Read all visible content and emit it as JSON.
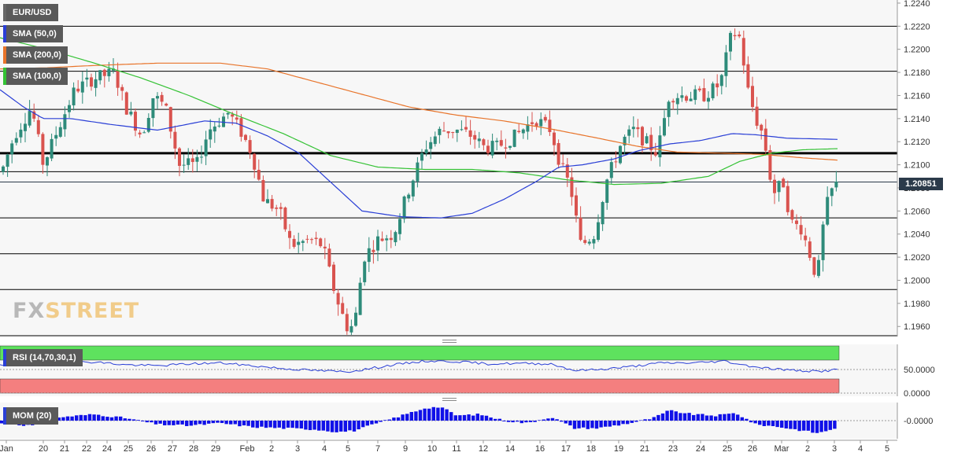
{
  "chart_data": [
    {
      "type": "candlestick",
      "symbol": "EUR/USD",
      "y_ticks": [
        "1.2240",
        "1.2220",
        "1.2200",
        "1.2180",
        "1.2160",
        "1.2140",
        "1.2120",
        "1.2100",
        "1.2080",
        "1.2060",
        "1.2040",
        "1.2020",
        "1.2000",
        "1.1980",
        "1.1960"
      ],
      "ylim": [
        1.1952,
        1.2242
      ],
      "x_tick_labels": [
        "Jan",
        "20",
        "21",
        "22",
        "24",
        "25",
        "26",
        "27",
        "28",
        "29",
        "Feb",
        "2",
        "3",
        "4",
        "5",
        "7",
        "9",
        "10",
        "11",
        "12",
        "14",
        "16",
        "17",
        "18",
        "19",
        "21",
        "23",
        "24",
        "25",
        "26",
        "Mar",
        "2",
        "3",
        "4",
        "5"
      ],
      "current_price": "1.20851",
      "horizontal_levels": [
        1.222,
        1.2181,
        1.2148,
        1.211,
        1.2094,
        1.2054,
        1.2023,
        1.1992,
        1.1952
      ],
      "bold_level": 1.211,
      "indicators": [
        {
          "name": "SMA (50,0)",
          "color": "#2a3fd6"
        },
        {
          "name": "SMA (200,0)",
          "color": "#e8742a"
        },
        {
          "name": "SMA (100,0)",
          "color": "#34c234"
        }
      ],
      "series": {
        "candles_waypoints": [
          [
            0,
            1.209
          ],
          [
            18,
            1.2125
          ],
          [
            40,
            1.215
          ],
          [
            55,
            1.21
          ],
          [
            70,
            1.2125
          ],
          [
            95,
            1.2165
          ],
          [
            120,
            1.2175
          ],
          [
            145,
            1.218
          ],
          [
            160,
            1.215
          ],
          [
            180,
            1.2125
          ],
          [
            195,
            1.216
          ],
          [
            210,
            1.215
          ],
          [
            228,
            1.21
          ],
          [
            250,
            1.21
          ],
          [
            265,
            1.213
          ],
          [
            290,
            1.2145
          ],
          [
            305,
            1.213
          ],
          [
            320,
            1.211
          ],
          [
            335,
            1.207
          ],
          [
            355,
            1.206
          ],
          [
            370,
            1.203
          ],
          [
            395,
            1.2035
          ],
          [
            410,
            1.203
          ],
          [
            425,
            1.199
          ],
          [
            440,
            1.196
          ],
          [
            450,
            1.196
          ],
          [
            462,
            1.202
          ],
          [
            480,
            1.2035
          ],
          [
            500,
            1.204
          ],
          [
            520,
            1.208
          ],
          [
            540,
            1.2115
          ],
          [
            560,
            1.213
          ],
          [
            580,
            1.213
          ],
          [
            600,
            1.2125
          ],
          [
            615,
            1.2115
          ],
          [
            630,
            1.2115
          ],
          [
            655,
            1.2125
          ],
          [
            680,
            1.214
          ],
          [
            700,
            1.213
          ],
          [
            712,
            1.21
          ],
          [
            725,
            1.208
          ],
          [
            738,
            1.203
          ],
          [
            755,
            1.204
          ],
          [
            770,
            1.2085
          ],
          [
            790,
            1.212
          ],
          [
            805,
            1.213
          ],
          [
            820,
            1.212
          ],
          [
            835,
            1.211
          ],
          [
            850,
            1.216
          ],
          [
            870,
            1.216
          ],
          [
            895,
            1.216
          ],
          [
            915,
            1.217
          ],
          [
            930,
            1.2215
          ],
          [
            940,
            1.221
          ],
          [
            950,
            1.2165
          ],
          [
            960,
            1.214
          ],
          [
            970,
            1.2125
          ],
          [
            982,
            1.2075
          ],
          [
            995,
            1.2085
          ],
          [
            1005,
            1.205
          ],
          [
            1018,
            1.2045
          ],
          [
            1030,
            1.202
          ],
          [
            1038,
            1.2
          ],
          [
            1048,
            1.206
          ],
          [
            1058,
            1.208
          ],
          [
            1066,
            1.2085
          ]
        ],
        "sma50": [
          [
            0,
            1.2165
          ],
          [
            30,
            1.215
          ],
          [
            55,
            1.214
          ],
          [
            90,
            1.214
          ],
          [
            140,
            1.2135
          ],
          [
            200,
            1.213
          ],
          [
            260,
            1.2138
          ],
          [
            300,
            1.2136
          ],
          [
            340,
            1.2125
          ],
          [
            380,
            1.211
          ],
          [
            420,
            1.2085
          ],
          [
            460,
            1.206
          ],
          [
            510,
            1.2055
          ],
          [
            560,
            1.2054
          ],
          [
            600,
            1.2058
          ],
          [
            640,
            1.207
          ],
          [
            680,
            1.2085
          ],
          [
            710,
            1.2098
          ],
          [
            740,
            1.21
          ],
          [
            780,
            1.2105
          ],
          [
            810,
            1.2112
          ],
          [
            850,
            1.2118
          ],
          [
            890,
            1.2121
          ],
          [
            930,
            1.2127
          ],
          [
            960,
            1.2126
          ],
          [
            1000,
            1.2123
          ],
          [
            1065,
            1.2122
          ]
        ],
        "sma200": [
          [
            0,
            1.2183
          ],
          [
            60,
            1.2184
          ],
          [
            120,
            1.2186
          ],
          [
            200,
            1.2188
          ],
          [
            280,
            1.2188
          ],
          [
            340,
            1.2183
          ],
          [
            400,
            1.2172
          ],
          [
            460,
            1.2161
          ],
          [
            520,
            1.215
          ],
          [
            580,
            1.2143
          ],
          [
            640,
            1.2138
          ],
          [
            700,
            1.2131
          ],
          [
            760,
            1.2123
          ],
          [
            810,
            1.2116
          ],
          [
            860,
            1.2111
          ],
          [
            920,
            1.211
          ],
          [
            970,
            1.2109
          ],
          [
            1020,
            1.2106
          ],
          [
            1065,
            1.2104
          ]
        ],
        "sma100": [
          [
            0,
            1.221
          ],
          [
            60,
            1.22
          ],
          [
            120,
            1.2188
          ],
          [
            180,
            1.2175
          ],
          [
            240,
            1.216
          ],
          [
            300,
            1.2143
          ],
          [
            360,
            1.2127
          ],
          [
            420,
            1.2108
          ],
          [
            480,
            1.2098
          ],
          [
            540,
            1.2096
          ],
          [
            600,
            1.2096
          ],
          [
            660,
            1.2093
          ],
          [
            720,
            1.2087
          ],
          [
            780,
            1.2083
          ],
          [
            840,
            1.2084
          ],
          [
            900,
            1.209
          ],
          [
            940,
            1.2103
          ],
          [
            980,
            1.211
          ],
          [
            1020,
            1.2113
          ],
          [
            1065,
            1.2114
          ]
        ]
      }
    },
    {
      "type": "line",
      "title": "RSI (14,70,30,1)",
      "y_ticks": [
        "50.0000",
        "0.0000"
      ],
      "overbought_color": "#5ee25e",
      "oversold_color": "#f47f7f",
      "values_waypoints": [
        [
          0,
          58
        ],
        [
          40,
          60
        ],
        [
          80,
          65
        ],
        [
          120,
          66
        ],
        [
          160,
          60
        ],
        [
          200,
          58
        ],
        [
          240,
          62
        ],
        [
          280,
          64
        ],
        [
          320,
          58
        ],
        [
          360,
          52
        ],
        [
          400,
          48
        ],
        [
          440,
          45
        ],
        [
          470,
          52
        ],
        [
          500,
          60
        ],
        [
          540,
          68
        ],
        [
          580,
          67
        ],
        [
          620,
          62
        ],
        [
          660,
          63
        ],
        [
          700,
          62
        ],
        [
          730,
          48
        ],
        [
          760,
          50
        ],
        [
          800,
          56
        ],
        [
          840,
          64
        ],
        [
          880,
          64
        ],
        [
          920,
          68
        ],
        [
          950,
          58
        ],
        [
          980,
          52
        ],
        [
          1010,
          48
        ],
        [
          1040,
          46
        ],
        [
          1066,
          50
        ]
      ]
    },
    {
      "type": "bar",
      "title": "MOM (20)",
      "y_ticks": [
        "-0.0000"
      ],
      "values_waypoints": [
        [
          0,
          -2
        ],
        [
          40,
          -4
        ],
        [
          80,
          3
        ],
        [
          120,
          5
        ],
        [
          160,
          2
        ],
        [
          200,
          -3
        ],
        [
          240,
          -4
        ],
        [
          280,
          -2
        ],
        [
          320,
          -5
        ],
        [
          360,
          -6
        ],
        [
          400,
          -7
        ],
        [
          430,
          -9
        ],
        [
          450,
          -8
        ],
        [
          480,
          -2
        ],
        [
          510,
          4
        ],
        [
          540,
          10
        ],
        [
          560,
          11
        ],
        [
          580,
          4
        ],
        [
          610,
          5
        ],
        [
          640,
          0
        ],
        [
          670,
          -2
        ],
        [
          700,
          3
        ],
        [
          730,
          -6
        ],
        [
          760,
          -6
        ],
        [
          800,
          -2
        ],
        [
          830,
          2
        ],
        [
          850,
          8
        ],
        [
          880,
          5
        ],
        [
          910,
          4
        ],
        [
          935,
          6
        ],
        [
          960,
          -3
        ],
        [
          990,
          -5
        ],
        [
          1020,
          -8
        ],
        [
          1040,
          -10
        ],
        [
          1066,
          -5
        ]
      ]
    }
  ],
  "labels": {
    "symbol": "EUR/USD",
    "sma50": "SMA (50,0)",
    "sma200": "SMA (200,0)",
    "sma100": "SMA (100,0)",
    "rsi": "RSI (14,70,30,1)",
    "mom": "MOM (20)",
    "price_tag": "1.20851",
    "watermark_fx": "FX",
    "watermark_street": "STREET"
  }
}
